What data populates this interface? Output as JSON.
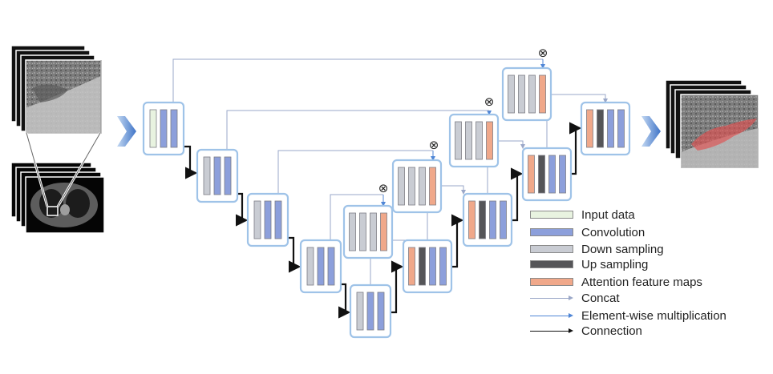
{
  "colors": {
    "input_data": "#e8f3e0",
    "convolution": "#8c9fdb",
    "down_sampling": "#c9ccd3",
    "up_sampling": "#555558",
    "attention": "#f0a88a",
    "block_border": "#9fc3e8",
    "concat_line": "#9aa7c8",
    "multiplication_line": "#4f86d6",
    "connection_line": "#111111",
    "flow_arrow": "#3f74c7",
    "segmentation_overlay": "#e05050"
  },
  "legend": [
    {
      "label": "Input data",
      "kind": "swatch",
      "color_key": "input_data"
    },
    {
      "label": "Convolution",
      "kind": "swatch",
      "color_key": "convolution"
    },
    {
      "label": "Down sampling",
      "kind": "swatch",
      "color_key": "down_sampling"
    },
    {
      "label": "Up sampling",
      "kind": "swatch",
      "color_key": "up_sampling"
    },
    {
      "label": "Attention feature maps",
      "kind": "swatch",
      "color_key": "attention"
    },
    {
      "label": "Concat",
      "kind": "line",
      "color_key": "concat_line"
    },
    {
      "label": "Element-wise multiplication",
      "kind": "line",
      "color_key": "multiplication_line"
    },
    {
      "label": "Connection",
      "kind": "line",
      "color_key": "connection_line"
    }
  ],
  "multiply_symbol": "⊗",
  "icons": {
    "input_ct_stack": "ct-slice-stack-icon",
    "output_ct_stack": "segmented-ct-slice-stack-icon",
    "flow_arrow": "chevron-right-arrow-icon"
  }
}
